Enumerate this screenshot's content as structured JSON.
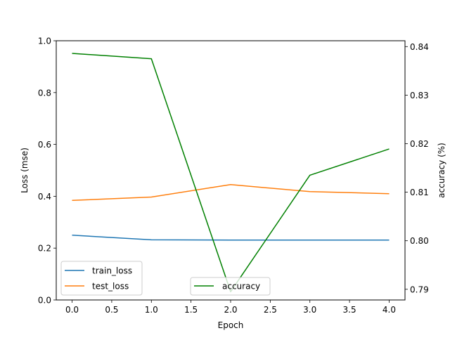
{
  "chart_data": {
    "type": "line",
    "title": "",
    "xlabel": "Epoch",
    "ylabel": "Loss (mse)",
    "y2label": "accuracy (%)",
    "xlim": [
      -0.2,
      4.2
    ],
    "ylim": [
      0,
      1.0
    ],
    "y2lim": [
      0.7878,
      0.8412
    ],
    "xticks": [
      "0.0",
      "0.5",
      "1.0",
      "1.5",
      "2.0",
      "2.5",
      "3.0",
      "3.5",
      "4.0"
    ],
    "yticks": [
      "0.0",
      "0.2",
      "0.4",
      "0.6",
      "0.8",
      "1.0"
    ],
    "y2ticks": [
      "0.79",
      "0.80",
      "0.81",
      "0.82",
      "0.83",
      "0.84"
    ],
    "x": [
      0,
      1,
      2,
      3,
      4
    ],
    "series": [
      {
        "name": "train_loss",
        "axis": "left",
        "color": "#1f77b4",
        "values": [
          0.25,
          0.232,
          0.231,
          0.231,
          0.231
        ]
      },
      {
        "name": "test_loss",
        "axis": "left",
        "color": "#ff7f0e",
        "values": [
          0.384,
          0.397,
          0.445,
          0.418,
          0.41
        ]
      },
      {
        "name": "accuracy",
        "axis": "right",
        "color": "#008000",
        "values": [
          0.8386,
          0.8375,
          0.7895,
          0.8135,
          0.8189
        ]
      }
    ],
    "legends": [
      {
        "placement": "lower-left",
        "entries": [
          "train_loss",
          "test_loss"
        ]
      },
      {
        "placement": "lower-center",
        "entries": [
          "accuracy"
        ]
      }
    ],
    "grid": false
  }
}
